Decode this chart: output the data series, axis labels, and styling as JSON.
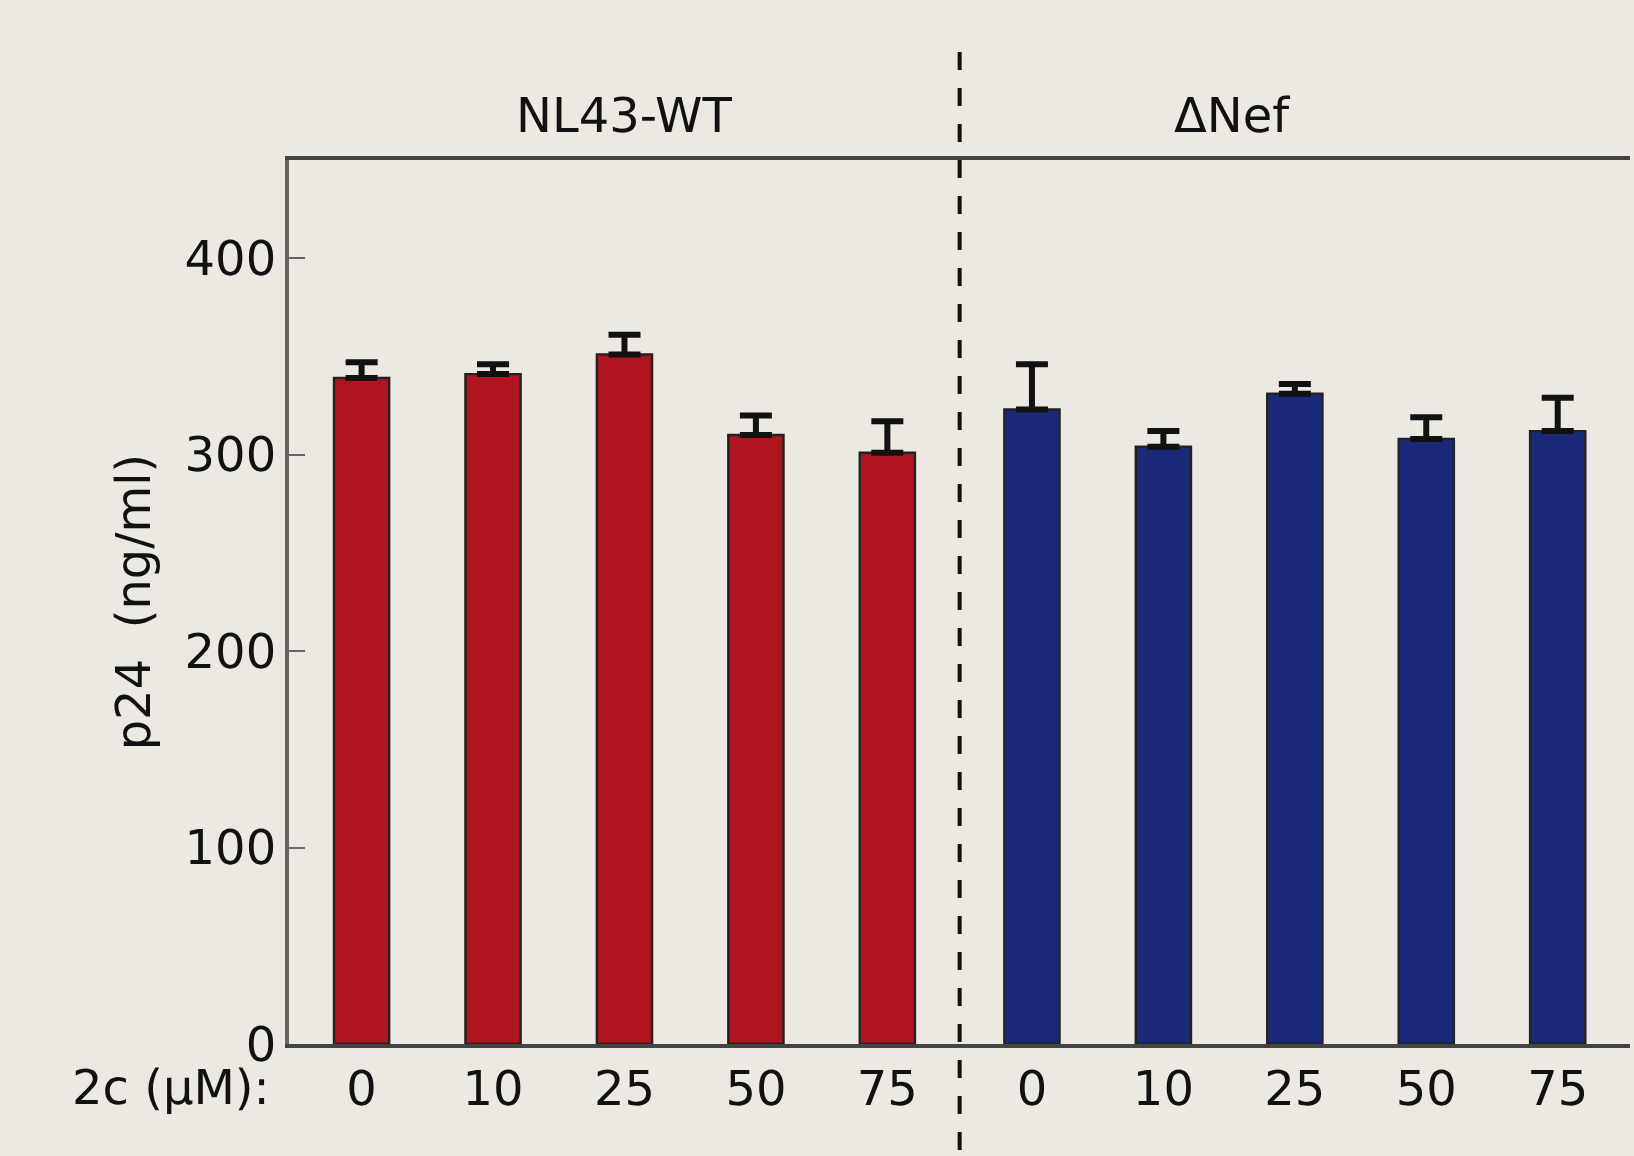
{
  "chart_data": [
    {
      "type": "bar",
      "title": "NL43-WT",
      "xlabel": "2c (μM):",
      "ylabel": "p24  (ng/ml)",
      "categories": [
        "0",
        "10",
        "25",
        "50",
        "75"
      ],
      "values": [
        339,
        341,
        351,
        310,
        301
      ],
      "color": "#b0141e",
      "errors": [
        [
          339,
          347
        ],
        [
          341,
          346
        ],
        [
          351,
          361
        ],
        [
          310,
          320
        ],
        [
          301,
          317
        ]
      ],
      "ylim": [
        0,
        450
      ],
      "yticks": [
        0,
        100,
        200,
        300,
        400
      ],
      "grid": false,
      "legend": false
    },
    {
      "type": "bar",
      "title": "ΔNef",
      "categories": [
        "0",
        "10",
        "25",
        "50",
        "75"
      ],
      "values": [
        323,
        304,
        331,
        308,
        312
      ],
      "color": "#1a2a78",
      "errors": [
        [
          323,
          346
        ],
        [
          304,
          312
        ],
        [
          331,
          336
        ],
        [
          308,
          319
        ],
        [
          312,
          329
        ]
      ],
      "ylim": [
        0,
        450
      ],
      "yticks": [
        0,
        100,
        200,
        300,
        400
      ],
      "tick_labels": "x",
      "grid": false,
      "legend": false
    }
  ]
}
